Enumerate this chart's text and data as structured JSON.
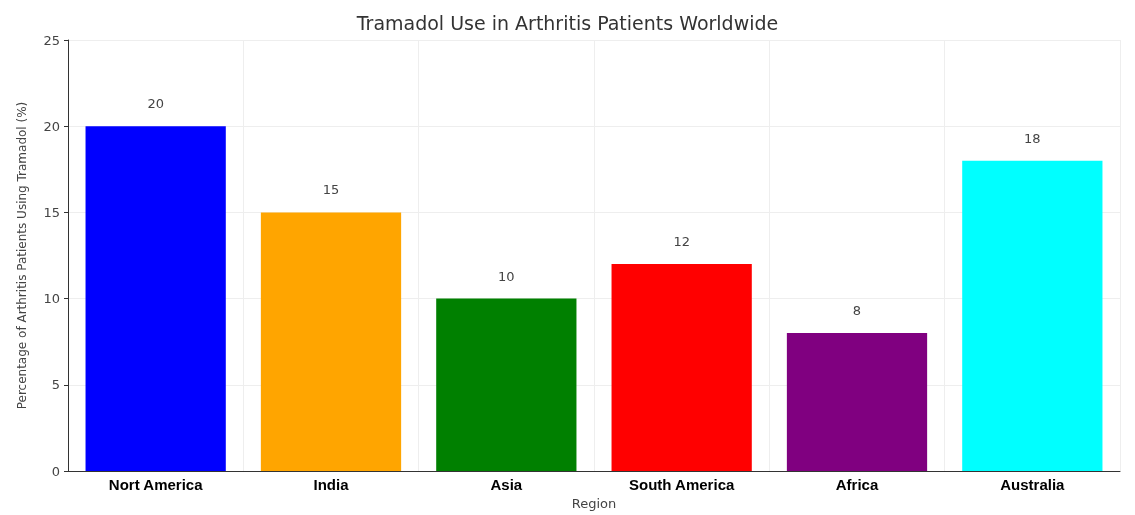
{
  "chart_data": {
    "type": "bar",
    "title": "Tramadol Use in Arthritis Patients Worldwide",
    "xlabel": "Region",
    "ylabel": "Percentage of Arthritis Patients Using Tramadol (%)",
    "categories": [
      "Nort America",
      "India",
      "Asia",
      "South America",
      "Africa",
      "Australia"
    ],
    "values": [
      20,
      15,
      10,
      12,
      8,
      18
    ],
    "colors": [
      "#0000ff",
      "#ffa500",
      "#008000",
      "#ff0000",
      "#800080",
      "#00ffff"
    ],
    "ylim": [
      0,
      25
    ],
    "yticks": [
      0,
      5,
      10,
      15,
      20,
      25
    ],
    "grid": true,
    "data_labels": true
  }
}
